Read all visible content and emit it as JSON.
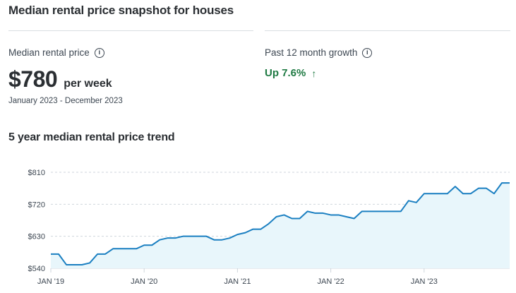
{
  "snapshot": {
    "title": "Median rental price snapshot for houses",
    "median_label": "Median rental price",
    "median_value": "$780",
    "median_unit": "per week",
    "date_range": "January 2023 - December 2023",
    "growth_label": "Past 12 month growth",
    "growth_value": "Up 7.6%",
    "info_icon": "info-icon",
    "growth_arrow_icon": "arrow-up-icon"
  },
  "colors": {
    "accent_line": "#1a7fc1",
    "area_fill": "#e8f6fb",
    "growth_positive": "#1f7a43",
    "grid": "#cfd6dc"
  },
  "trend_title": "5 year median rental price trend",
  "chart_data": {
    "type": "area",
    "title": "5 year median rental price trend",
    "ylim": [
      540,
      810
    ],
    "yticks": [
      540,
      630,
      720,
      810
    ],
    "ytick_labels": [
      "$540",
      "$630",
      "$720",
      "$810"
    ],
    "xlim": [
      "2019-01",
      "2023-12"
    ],
    "xtick_labels": [
      "JAN '19",
      "JAN '20",
      "JAN '21",
      "JAN '22",
      "JAN '23"
    ],
    "xtick_positions": [
      "2019-01",
      "2020-01",
      "2021-01",
      "2022-01",
      "2023-01"
    ],
    "grid": true,
    "series": [
      {
        "x": [
          "2019-01",
          "2019-02",
          "2019-03",
          "2019-04",
          "2019-05",
          "2019-06",
          "2019-07",
          "2019-08",
          "2019-09",
          "2019-10",
          "2019-11",
          "2019-12",
          "2020-01",
          "2020-02",
          "2020-03",
          "2020-04",
          "2020-05",
          "2020-06",
          "2020-07",
          "2020-08",
          "2020-09",
          "2020-10",
          "2020-11",
          "2020-12",
          "2021-01",
          "2021-02",
          "2021-03",
          "2021-04",
          "2021-05",
          "2021-06",
          "2021-07",
          "2021-08",
          "2021-09",
          "2021-10",
          "2021-11",
          "2021-12",
          "2022-01",
          "2022-02",
          "2022-03",
          "2022-04",
          "2022-05",
          "2022-06",
          "2022-07",
          "2022-08",
          "2022-09",
          "2022-10",
          "2022-11",
          "2022-12",
          "2023-01",
          "2023-02",
          "2023-03",
          "2023-04",
          "2023-05",
          "2023-06",
          "2023-07",
          "2023-08",
          "2023-09",
          "2023-10",
          "2023-11",
          "2023-12"
        ],
        "values": [
          580,
          580,
          550,
          550,
          550,
          555,
          580,
          580,
          595,
          595,
          595,
          595,
          605,
          605,
          620,
          625,
          625,
          630,
          630,
          630,
          630,
          620,
          620,
          625,
          635,
          640,
          650,
          650,
          665,
          685,
          690,
          680,
          680,
          700,
          695,
          695,
          690,
          690,
          685,
          680,
          700,
          700,
          700,
          700,
          700,
          700,
          730,
          725,
          750,
          750,
          750,
          750,
          770,
          750,
          750,
          765,
          765,
          750,
          780,
          780
        ]
      }
    ]
  }
}
